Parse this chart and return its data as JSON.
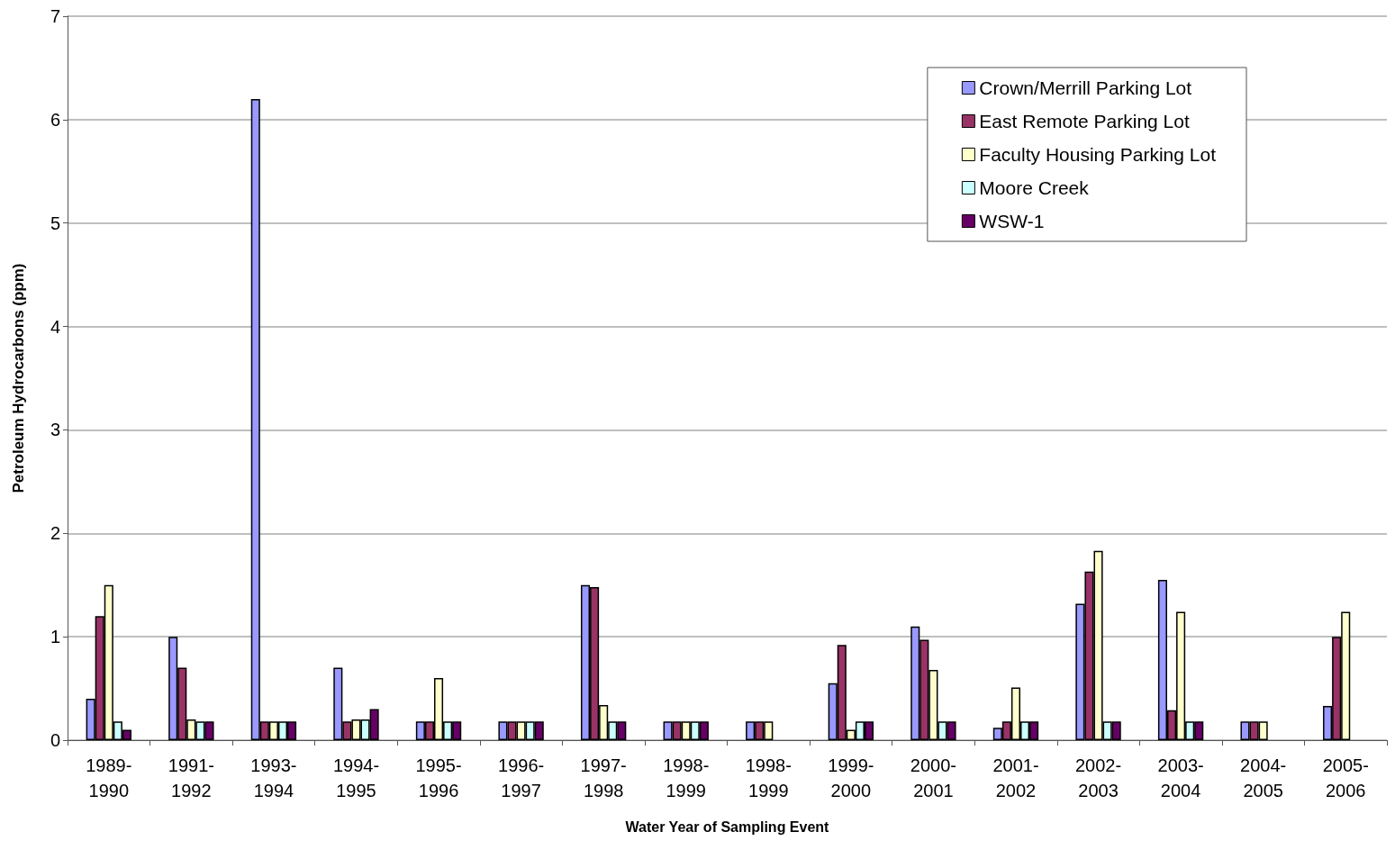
{
  "chart_data": {
    "type": "bar",
    "xlabel": "Water Year of Sampling Event",
    "ylabel": "Petroleum Hydrocarbons (ppm)",
    "categories": [
      "1989-1990",
      "1991-1992",
      "1993-1994",
      "1994-1995",
      "1995-1996",
      "1996-1997",
      "1997-1998",
      "1998-1999",
      "1998-1999",
      "1999-2000",
      "2000-2001",
      "2001-2002",
      "2002-2003",
      "2003-2004",
      "2004-2005",
      "2005-2006"
    ],
    "series": [
      {
        "name": "Crown/Merrill Parking Lot",
        "color": "#9999ff",
        "values": [
          0.4,
          1.0,
          6.2,
          0.7,
          0.18,
          0.18,
          1.5,
          0.18,
          0.18,
          0.55,
          1.1,
          0.12,
          1.32,
          1.55,
          0.18,
          0.33
        ]
      },
      {
        "name": "East Remote Parking Lot",
        "color": "#993366",
        "values": [
          1.2,
          0.7,
          0.18,
          0.18,
          0.18,
          0.18,
          1.48,
          0.18,
          0.18,
          0.92,
          0.97,
          0.18,
          1.63,
          0.29,
          0.18,
          1.0
        ]
      },
      {
        "name": "Faculty Housing Parking Lot",
        "color": "#ffffcc",
        "values": [
          1.5,
          0.2,
          0.18,
          0.2,
          0.6,
          0.18,
          0.34,
          0.18,
          0.18,
          0.1,
          0.68,
          0.51,
          1.83,
          1.24,
          0.18,
          1.24
        ]
      },
      {
        "name": "Moore Creek",
        "color": "#ccffff",
        "values": [
          0.18,
          0.18,
          0.18,
          0.2,
          0.18,
          0.18,
          0.18,
          0.18,
          null,
          0.18,
          0.18,
          0.18,
          0.18,
          0.18,
          null,
          null
        ]
      },
      {
        "name": "WSW-1",
        "color": "#660066",
        "values": [
          0.1,
          0.18,
          0.18,
          0.3,
          0.18,
          0.18,
          0.18,
          0.18,
          null,
          0.18,
          0.18,
          0.18,
          0.18,
          0.18,
          null,
          null
        ]
      }
    ],
    "ylim": [
      0,
      7
    ],
    "yticks": [
      0,
      1,
      2,
      3,
      4,
      5,
      6,
      7
    ],
    "grid": "y",
    "legend": "top right"
  }
}
